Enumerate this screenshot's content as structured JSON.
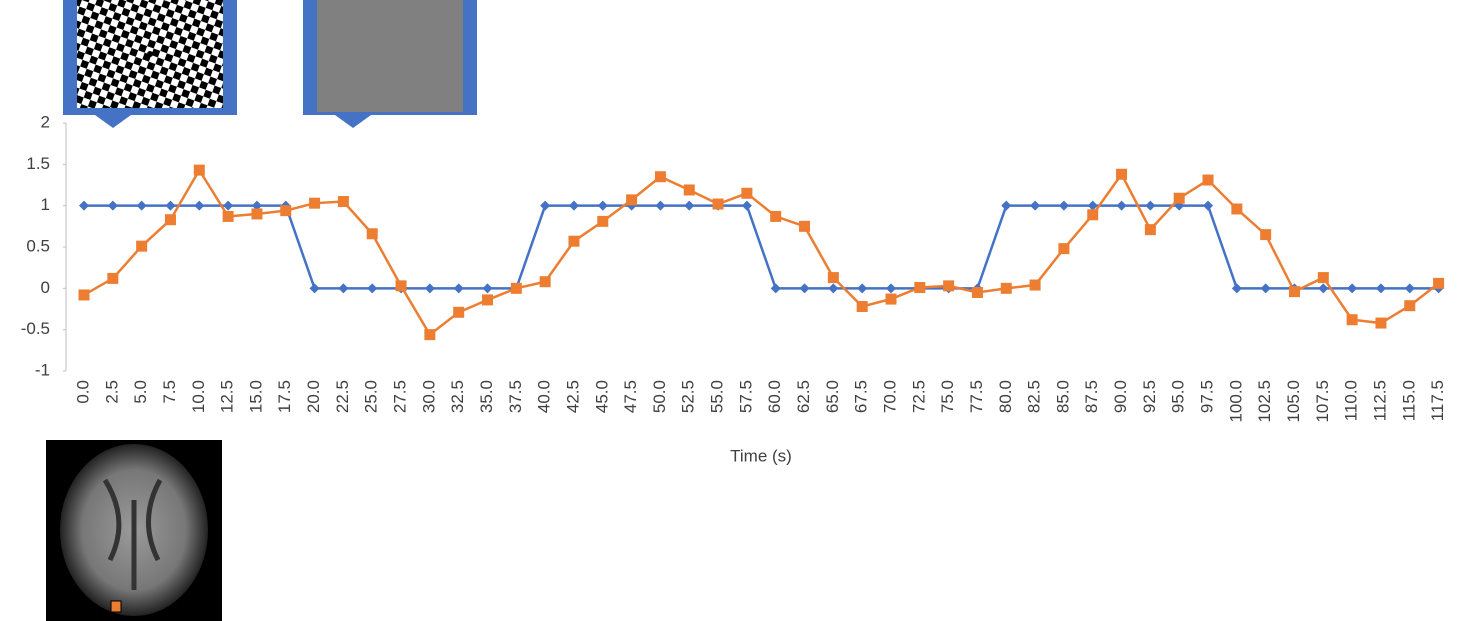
{
  "chart_data": {
    "type": "line",
    "x_label": "Time (s)",
    "categories": [
      "0.0",
      "2.5",
      "5.0",
      "7.5",
      "10.0",
      "12.5",
      "15.0",
      "17.5",
      "20.0",
      "22.5",
      "25.0",
      "27.5",
      "30.0",
      "32.5",
      "35.0",
      "37.5",
      "40.0",
      "42.5",
      "45.0",
      "47.5",
      "50.0",
      "52.5",
      "55.0",
      "57.5",
      "60.0",
      "62.5",
      "65.0",
      "67.5",
      "70.0",
      "72.5",
      "75.0",
      "77.5",
      "80.0",
      "82.5",
      "85.0",
      "87.5",
      "90.0",
      "92.5",
      "95.0",
      "97.5",
      "100.0",
      "102.5",
      "105.0",
      "107.5",
      "110.0",
      "112.5",
      "115.0",
      "117.5"
    ],
    "series": [
      {
        "color": "#4472c4",
        "marker": "diamond",
        "values": [
          1,
          1,
          1,
          1,
          1,
          1,
          1,
          1,
          0,
          0,
          0,
          0,
          0,
          0,
          0,
          0,
          1,
          1,
          1,
          1,
          1,
          1,
          1,
          1,
          0,
          0,
          0,
          0,
          0,
          0,
          0,
          0,
          1,
          1,
          1,
          1,
          1,
          1,
          1,
          1,
          0,
          0,
          0,
          0,
          0,
          0,
          0,
          0
        ]
      },
      {
        "color": "#ed7d31",
        "marker": "square",
        "values": [
          -0.08,
          0.12,
          0.51,
          0.83,
          1.43,
          0.87,
          0.9,
          0.94,
          1.03,
          1.05,
          0.66,
          0.03,
          -0.56,
          -0.29,
          -0.14,
          0.0,
          0.08,
          0.57,
          0.81,
          1.07,
          1.35,
          1.19,
          1.02,
          1.15,
          0.87,
          0.75,
          0.13,
          -0.22,
          -0.13,
          0.01,
          0.03,
          -0.05,
          0.0,
          0.04,
          0.48,
          0.89,
          1.38,
          0.71,
          1.09,
          1.31,
          0.96,
          0.65,
          -0.04,
          0.13,
          -0.38,
          -0.42,
          -0.21,
          0.06
        ]
      }
    ],
    "ylim": [
      -1,
      2
    ],
    "yticks": [
      -1,
      -0.5,
      0,
      0.5,
      1,
      1.5,
      2
    ],
    "grid": false
  }
}
